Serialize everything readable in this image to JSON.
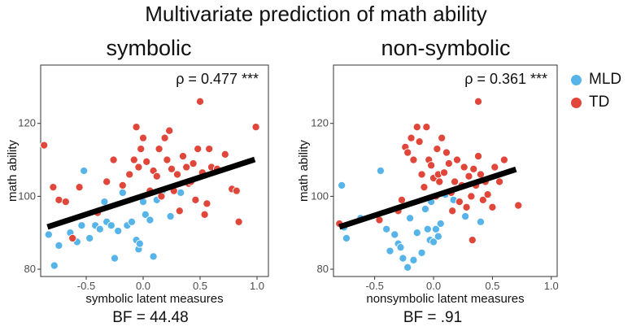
{
  "figure": {
    "title": "Multivariate prediction of math ability"
  },
  "legend": {
    "items": [
      {
        "label": "MLD",
        "color": "#56B4E9"
      },
      {
        "label": "TD",
        "color": "#E0463A"
      }
    ]
  },
  "chart_data": [
    {
      "type": "scatter",
      "panel_title": "symbolic",
      "xlabel": "symbolic latent measures",
      "ylabel": "math ability",
      "annotation": "ρ = 0.477 ***",
      "footer": "BF = 44.48",
      "xlim": [
        -0.9,
        1.1
      ],
      "ylim": [
        78,
        136
      ],
      "xticks": [
        -0.5,
        0.0,
        0.5,
        1.0
      ],
      "xtick_labels": [
        "-0.5",
        "0.0",
        "0.5",
        "1.0"
      ],
      "yticks": [
        80,
        100,
        120
      ],
      "ytick_labels": [
        "80",
        "100",
        "120"
      ],
      "grid": false,
      "regression_line": {
        "x": [
          -0.84,
          0.98
        ],
        "y": [
          91.6,
          110.1
        ]
      },
      "series": [
        {
          "name": "MLD",
          "color": "#56B4E9",
          "points": [
            [
              -0.83,
              89.5
            ],
            [
              -0.78,
              81
            ],
            [
              -0.74,
              86.5
            ],
            [
              -0.64,
              90
            ],
            [
              -0.58,
              87.5
            ],
            [
              -0.54,
              92
            ],
            [
              -0.52,
              107
            ],
            [
              -0.47,
              88.5
            ],
            [
              -0.42,
              92
            ],
            [
              -0.38,
              91
            ],
            [
              -0.34,
              98.5
            ],
            [
              -0.32,
              93
            ],
            [
              -0.28,
              92
            ],
            [
              -0.25,
              83
            ],
            [
              -0.22,
              90.5
            ],
            [
              -0.18,
              101
            ],
            [
              -0.14,
              92
            ],
            [
              -0.1,
              93
            ],
            [
              -0.06,
              88
            ],
            [
              -0.04,
              85.5
            ],
            [
              -0.03,
              87
            ],
            [
              0.0,
              98.5
            ],
            [
              0.02,
              95
            ],
            [
              0.06,
              93.5
            ],
            [
              0.09,
              83.5
            ],
            [
              0.12,
              99
            ],
            [
              0.17,
              101.5
            ],
            [
              0.24,
              94.5
            ],
            [
              0.33,
              101
            ]
          ]
        },
        {
          "name": "TD",
          "color": "#E0463A",
          "points": [
            [
              -0.87,
              114
            ],
            [
              -0.79,
              102.5
            ],
            [
              -0.74,
              99
            ],
            [
              -0.68,
              98.5
            ],
            [
              -0.56,
              102.5
            ],
            [
              -0.62,
              88.5
            ],
            [
              -0.4,
              95.5
            ],
            [
              -0.32,
              104
            ],
            [
              -0.26,
              110
            ],
            [
              -0.18,
              103
            ],
            [
              -0.12,
              106
            ],
            [
              -0.08,
              110
            ],
            [
              -0.06,
              119
            ],
            [
              -0.04,
              108
            ],
            [
              -0.02,
              113
            ],
            [
              0.0,
              116
            ],
            [
              0.03,
              109.5
            ],
            [
              0.06,
              101.5
            ],
            [
              0.09,
              107
            ],
            [
              0.12,
              105.5
            ],
            [
              0.14,
              113
            ],
            [
              0.16,
              100
            ],
            [
              0.19,
              116
            ],
            [
              0.21,
              110
            ],
            [
              0.23,
              118
            ],
            [
              0.25,
              107.5
            ],
            [
              0.27,
              101.5
            ],
            [
              0.3,
              106
            ],
            [
              0.32,
              96
            ],
            [
              0.35,
              111
            ],
            [
              0.38,
              108
            ],
            [
              0.4,
              103.5
            ],
            [
              0.42,
              104
            ],
            [
              0.44,
              109
            ],
            [
              0.46,
              99
            ],
            [
              0.48,
              113
            ],
            [
              0.5,
              126
            ],
            [
              0.52,
              106.5
            ],
            [
              0.54,
              95
            ],
            [
              0.56,
              98
            ],
            [
              0.58,
              113
            ],
            [
              0.6,
              108
            ],
            [
              0.65,
              107.5
            ],
            [
              0.72,
              111.5
            ],
            [
              0.78,
              102
            ],
            [
              0.82,
              101.5
            ],
            [
              0.84,
              93
            ],
            [
              0.99,
              119
            ]
          ]
        }
      ]
    },
    {
      "type": "scatter",
      "panel_title": "non-symbolic",
      "xlabel": "nonsymbolic latent measures",
      "ylabel": "math ability",
      "annotation": "ρ = 0.361 ***",
      "footer": "BF = .91",
      "xlim": [
        -0.85,
        1.05
      ],
      "ylim": [
        78,
        136
      ],
      "xticks": [
        -0.5,
        0.0,
        0.5,
        1.0
      ],
      "xtick_labels": [
        "-0.5",
        "0.0",
        "0.5",
        "1.0"
      ],
      "yticks": [
        80,
        100,
        120
      ],
      "ytick_labels": [
        "80",
        "100",
        "120"
      ],
      "grid": false,
      "regression_line": {
        "x": [
          -0.8,
          0.7
        ],
        "y": [
          91.6,
          107.4
        ]
      },
      "series": [
        {
          "name": "MLD",
          "color": "#56B4E9",
          "points": [
            [
              -0.78,
              103
            ],
            [
              -0.76,
              91.5
            ],
            [
              -0.74,
              88.5
            ],
            [
              -0.62,
              94
            ],
            [
              -0.45,
              107
            ],
            [
              -0.4,
              91
            ],
            [
              -0.37,
              85
            ],
            [
              -0.33,
              89.5
            ],
            [
              -0.3,
              87
            ],
            [
              -0.28,
              86
            ],
            [
              -0.26,
              83
            ],
            [
              -0.22,
              80.5
            ],
            [
              -0.2,
              94
            ],
            [
              -0.17,
              82.5
            ],
            [
              -0.14,
              90
            ],
            [
              -0.1,
              84.5
            ],
            [
              -0.07,
              96.5
            ],
            [
              -0.05,
              91
            ],
            [
              -0.03,
              88
            ],
            [
              -0.02,
              98.5
            ],
            [
              0.0,
              87.5
            ],
            [
              0.02,
              91
            ],
            [
              0.04,
              89
            ],
            [
              0.06,
              92.5
            ],
            [
              0.1,
              100.5
            ],
            [
              0.17,
              99
            ],
            [
              0.27,
              94.5
            ],
            [
              0.4,
              93
            ]
          ]
        },
        {
          "name": "TD",
          "color": "#E0463A",
          "points": [
            [
              -0.8,
              92.5
            ],
            [
              -0.46,
              93.5
            ],
            [
              -0.3,
              96
            ],
            [
              -0.27,
              99
            ],
            [
              -0.24,
              113.5
            ],
            [
              -0.22,
              112
            ],
            [
              -0.19,
              116
            ],
            [
              -0.17,
              110
            ],
            [
              -0.14,
              119
            ],
            [
              -0.12,
              115
            ],
            [
              -0.1,
              106
            ],
            [
              -0.08,
              102.5
            ],
            [
              -0.06,
              119
            ],
            [
              -0.04,
              110
            ],
            [
              -0.02,
              108.5
            ],
            [
              0.0,
              105
            ],
            [
              0.02,
              100
            ],
            [
              0.03,
              113
            ],
            [
              0.04,
              106
            ],
            [
              0.05,
              104
            ],
            [
              0.07,
              116
            ],
            [
              0.09,
              106.5
            ],
            [
              0.11,
              112
            ],
            [
              0.13,
              109
            ],
            [
              0.15,
              101
            ],
            [
              0.16,
              96
            ],
            [
              0.18,
              104
            ],
            [
              0.2,
              110
            ],
            [
              0.22,
              98.5
            ],
            [
              0.24,
              103
            ],
            [
              0.26,
              108
            ],
            [
              0.28,
              97
            ],
            [
              0.3,
              105.5
            ],
            [
              0.32,
              100
            ],
            [
              0.33,
              88
            ],
            [
              0.34,
              107.5
            ],
            [
              0.36,
              103
            ],
            [
              0.38,
              111
            ],
            [
              0.4,
              106
            ],
            [
              0.42,
              99
            ],
            [
              0.44,
              104
            ],
            [
              0.46,
              100.5
            ],
            [
              0.5,
              97
            ],
            [
              0.52,
              108
            ],
            [
              0.56,
              104
            ],
            [
              0.6,
              110
            ],
            [
              0.72,
              97.5
            ],
            [
              0.38,
              126
            ]
          ]
        }
      ]
    }
  ]
}
